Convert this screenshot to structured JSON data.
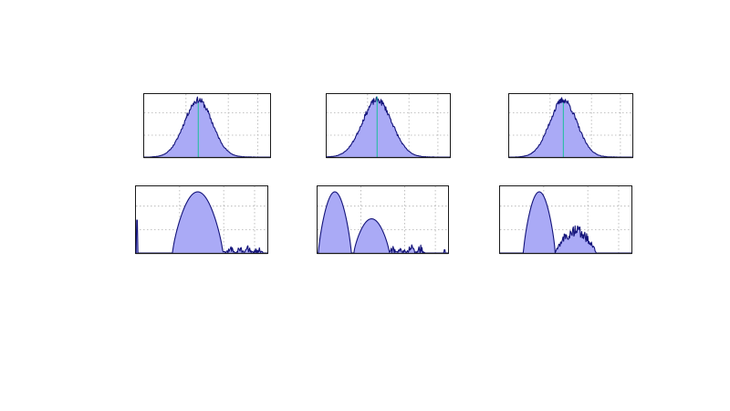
{
  "colors": {
    "fill": "#aaaaf6",
    "line": "#13137a",
    "marker": "#1abf9a",
    "grid": "#b0b0b0",
    "frame": "#1a1a1a"
  },
  "chart_data": [
    {
      "type": "area",
      "row": 0,
      "col": 0,
      "grid": true,
      "ylim": [
        0,
        1
      ],
      "peaks": [
        {
          "c": 0.43,
          "w": 0.11,
          "h": 0.92
        }
      ],
      "range": [
        0.05,
        0.88
      ],
      "noise": 0.05,
      "marker": 0.43,
      "seed": 11
    },
    {
      "type": "area",
      "row": 0,
      "col": 1,
      "grid": true,
      "ylim": [
        0,
        1
      ],
      "peaks": [
        {
          "c": 0.41,
          "w": 0.12,
          "h": 0.92
        }
      ],
      "range": [
        0.0,
        0.88
      ],
      "noise": 0.05,
      "marker": 0.41,
      "seed": 23
    },
    {
      "type": "area",
      "row": 0,
      "col": 2,
      "grid": true,
      "ylim": [
        0,
        1
      ],
      "peaks": [
        {
          "c": 0.44,
          "w": 0.11,
          "h": 0.92
        }
      ],
      "range": [
        0.05,
        0.88
      ],
      "noise": 0.05,
      "marker": 0.44,
      "seed": 37
    },
    {
      "type": "area",
      "row": 1,
      "col": 0,
      "grid": true,
      "ylim": [
        0,
        1
      ],
      "dome": {
        "start": 0.28,
        "end": 0.66,
        "h": 0.93
      },
      "spike": {
        "x": 0.012,
        "h": 0.5
      },
      "tail": {
        "start": 0.66,
        "end": 0.96,
        "h": 0.12,
        "seed": 5
      }
    },
    {
      "type": "area",
      "row": 1,
      "col": 1,
      "grid": true,
      "ylim": [
        0,
        1
      ],
      "dome": {
        "start": 0.01,
        "end": 0.26,
        "h": 0.93
      },
      "dome2": {
        "start": 0.28,
        "end": 0.55,
        "h": 0.52
      },
      "tail": {
        "start": 0.55,
        "end": 0.82,
        "h": 0.13,
        "seed": 9
      },
      "endtick": {
        "x": 0.97,
        "h": 0.05
      }
    },
    {
      "type": "area",
      "row": 1,
      "col": 2,
      "grid": true,
      "ylim": [
        0,
        1
      ],
      "dome": {
        "start": 0.18,
        "end": 0.42,
        "h": 0.93
      },
      "bump": {
        "start": 0.42,
        "end": 0.73,
        "h": 0.32,
        "seed": 13
      }
    }
  ]
}
